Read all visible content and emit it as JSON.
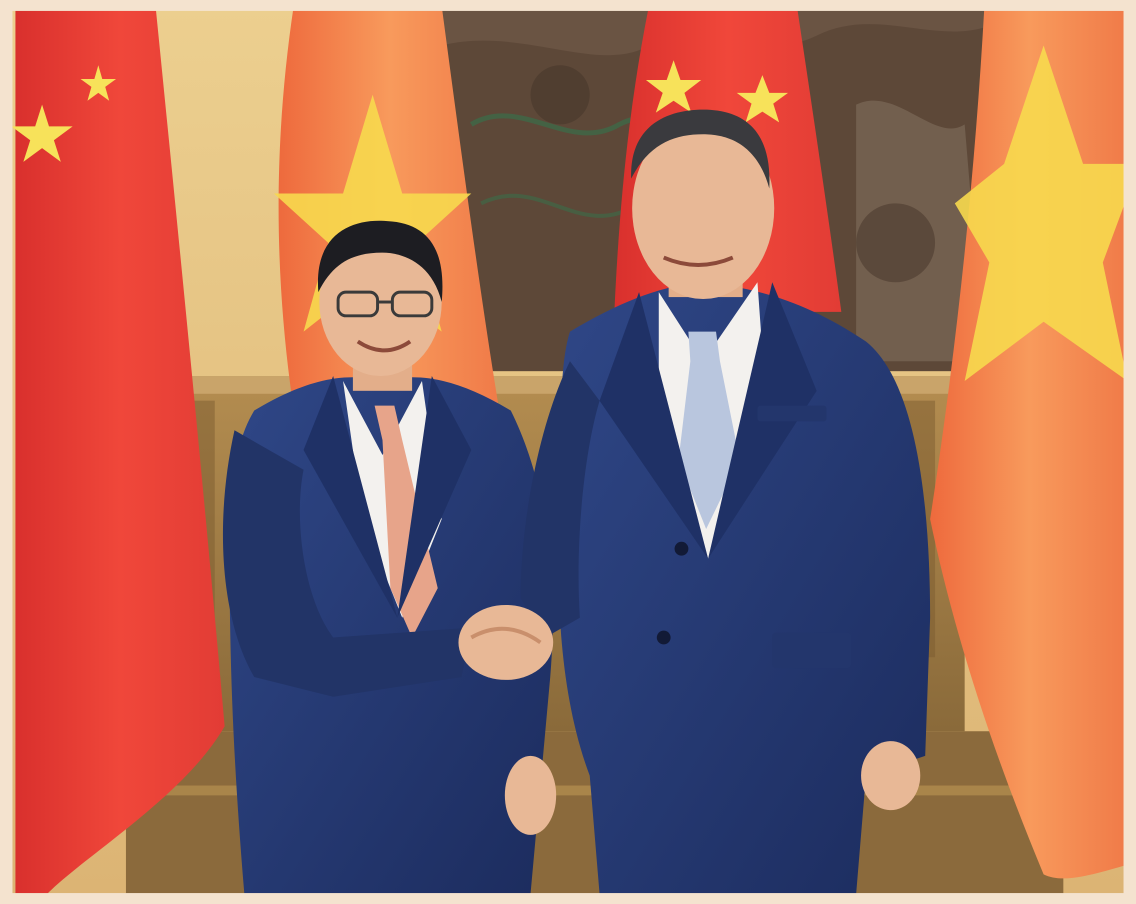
{
  "photo": {
    "scene": "two-person-handshake",
    "colors": {
      "flag_red": "#e8413a",
      "flag_red_light": "#f26a4a",
      "flag_star": "#f7e25a",
      "flag_vn_orange": "#f38a4e",
      "wall_gold": "#e7c986",
      "wood_panel": "#a9854a",
      "suit_navy": "#263a74",
      "suit_navy_shadow": "#1a2a58",
      "shirt_white": "#f3f1ee",
      "tie_salmon": "#e7a48a",
      "tie_lightblue": "#b9c6de",
      "skin": "#e8b896",
      "hair_dark": "#1d1d22",
      "mural_brown": "#5e4a3c",
      "border": "#f4e3cf"
    },
    "elements": [
      "flag-china-left",
      "flag-vietnam-center",
      "flag-china-center",
      "flag-vietnam-right",
      "carved-mural-backdrop",
      "wooden-paneling",
      "person-left",
      "person-right",
      "handshake"
    ]
  }
}
